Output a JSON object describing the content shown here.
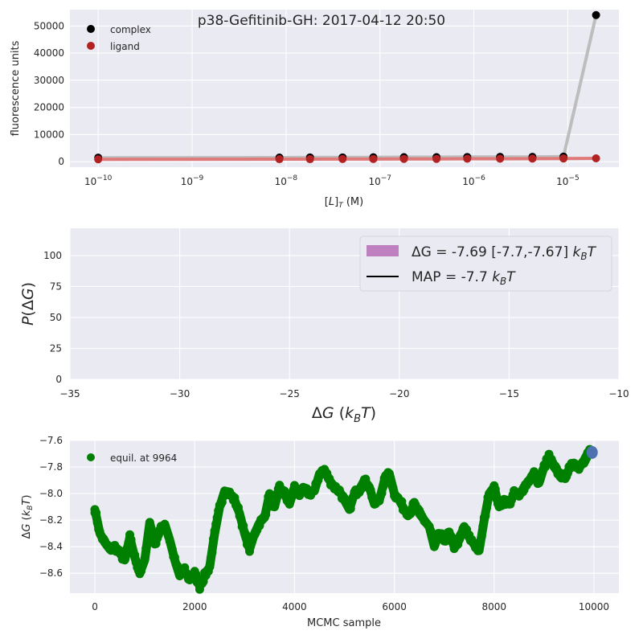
{
  "chart_data": [
    {
      "type": "scatter",
      "title": "p38-Gefitinib-GH: 2017-04-12 20:50",
      "xlabel": "[L]_T (M)",
      "ylabel": "fluorescence units",
      "xscale": "log",
      "xlim": [
        5e-11,
        3.5e-05
      ],
      "ylim": [
        -2000,
        56000
      ],
      "xticks": [
        {
          "value": 1e-10,
          "base": "10",
          "exp": "−10"
        },
        {
          "value": 1e-09,
          "base": "10",
          "exp": "−9"
        },
        {
          "value": 1e-08,
          "base": "10",
          "exp": "−8"
        },
        {
          "value": 1e-07,
          "base": "10",
          "exp": "−7"
        },
        {
          "value": 1e-06,
          "base": "10",
          "exp": "−6"
        },
        {
          "value": 1e-05,
          "base": "10",
          "exp": "−5"
        }
      ],
      "yticks": [
        0,
        10000,
        20000,
        30000,
        40000,
        50000
      ],
      "grid": true,
      "legend_position": "top-left",
      "x": [
        1e-10,
        8.5e-09,
        1.8e-08,
        4e-08,
        8.5e-08,
        1.8e-07,
        4e-07,
        8.5e-07,
        1.9e-06,
        4.2e-06,
        9e-06,
        2e-05
      ],
      "series": [
        {
          "name": "complex",
          "color": "#000000",
          "values": [
            1500,
            1550,
            1600,
            1600,
            1650,
            1700,
            1700,
            1750,
            1800,
            1800,
            1900,
            54000
          ]
        },
        {
          "name": "ligand",
          "color": "#b22222",
          "values": [
            900,
            950,
            950,
            1000,
            1000,
            1050,
            1050,
            1100,
            1100,
            1150,
            1200,
            1250
          ]
        }
      ]
    },
    {
      "type": "histogram",
      "xlabel": "ΔG (k_B T)",
      "ylabel": "P(ΔG)",
      "xlim": [
        -35,
        -10
      ],
      "ylim": [
        0,
        122
      ],
      "xticks": [
        -35,
        -30,
        -25,
        -20,
        -15,
        -10
      ],
      "yticks": [
        0,
        25,
        50,
        75,
        100
      ],
      "grid": true,
      "legend_position": "top-right",
      "legend": [
        {
          "color": "#bf80bf",
          "prefix": "ΔG = ",
          "value": " -7.69 [-7.7,-7.67] ",
          "unit": "k_B T"
        },
        {
          "color": "#000000",
          "prefix": "MAP = -7.7 ",
          "unit": "k_B T"
        }
      ]
    },
    {
      "type": "scatter",
      "xlabel": "MCMC sample",
      "ylabel": "ΔG (k_B T)",
      "xlim": [
        -500,
        10500
      ],
      "ylim": [
        -8.75,
        -7.6
      ],
      "xticks": [
        0,
        2000,
        4000,
        6000,
        8000,
        10000
      ],
      "yticks": [
        -8.6,
        -8.4,
        -8.2,
        -8.0,
        -7.8,
        -7.6
      ],
      "grid": true,
      "legend_position": "top-left",
      "series": [
        {
          "name": "equil. at 9964",
          "color": "#008000"
        }
      ],
      "trace_keypoints": [
        [
          0,
          -8.12
        ],
        [
          100,
          -8.3
        ],
        [
          200,
          -8.37
        ],
        [
          300,
          -8.42
        ],
        [
          400,
          -8.4
        ],
        [
          500,
          -8.45
        ],
        [
          600,
          -8.5
        ],
        [
          700,
          -8.33
        ],
        [
          800,
          -8.48
        ],
        [
          900,
          -8.6
        ],
        [
          1000,
          -8.5
        ],
        [
          1100,
          -8.22
        ],
        [
          1200,
          -8.38
        ],
        [
          1300,
          -8.28
        ],
        [
          1400,
          -8.23
        ],
        [
          1500,
          -8.35
        ],
        [
          1600,
          -8.5
        ],
        [
          1700,
          -8.62
        ],
        [
          1800,
          -8.58
        ],
        [
          1900,
          -8.65
        ],
        [
          2000,
          -8.6
        ],
        [
          2100,
          -8.7
        ],
        [
          2200,
          -8.62
        ],
        [
          2300,
          -8.55
        ],
        [
          2400,
          -8.3
        ],
        [
          2500,
          -8.1
        ],
        [
          2600,
          -7.98
        ],
        [
          2700,
          -8.0
        ],
        [
          2800,
          -8.05
        ],
        [
          2900,
          -8.15
        ],
        [
          3000,
          -8.3
        ],
        [
          3100,
          -8.42
        ],
        [
          3200,
          -8.3
        ],
        [
          3300,
          -8.22
        ],
        [
          3400,
          -8.18
        ],
        [
          3500,
          -8.0
        ],
        [
          3600,
          -8.1
        ],
        [
          3700,
          -7.95
        ],
        [
          3800,
          -8.0
        ],
        [
          3900,
          -8.08
        ],
        [
          4000,
          -7.95
        ],
        [
          4100,
          -8.0
        ],
        [
          4200,
          -7.97
        ],
        [
          4300,
          -8.0
        ],
        [
          4400,
          -7.98
        ],
        [
          4500,
          -7.85
        ],
        [
          4600,
          -7.82
        ],
        [
          4700,
          -7.9
        ],
        [
          4800,
          -7.95
        ],
        [
          4900,
          -7.98
        ],
        [
          5000,
          -8.05
        ],
        [
          5100,
          -8.12
        ],
        [
          5200,
          -8.0
        ],
        [
          5300,
          -7.97
        ],
        [
          5400,
          -7.9
        ],
        [
          5500,
          -7.95
        ],
        [
          5600,
          -8.08
        ],
        [
          5700,
          -8.05
        ],
        [
          5800,
          -7.9
        ],
        [
          5900,
          -7.85
        ],
        [
          6000,
          -8.0
        ],
        [
          6100,
          -8.05
        ],
        [
          6200,
          -8.12
        ],
        [
          6300,
          -8.15
        ],
        [
          6400,
          -8.08
        ],
        [
          6500,
          -8.15
        ],
        [
          6600,
          -8.2
        ],
        [
          6700,
          -8.25
        ],
        [
          6800,
          -8.4
        ],
        [
          6900,
          -8.3
        ],
        [
          7000,
          -8.35
        ],
        [
          7100,
          -8.3
        ],
        [
          7200,
          -8.4
        ],
        [
          7300,
          -8.35
        ],
        [
          7400,
          -8.25
        ],
        [
          7500,
          -8.33
        ],
        [
          7600,
          -8.38
        ],
        [
          7700,
          -8.43
        ],
        [
          7800,
          -8.2
        ],
        [
          7900,
          -8.0
        ],
        [
          8000,
          -7.95
        ],
        [
          8100,
          -8.1
        ],
        [
          8200,
          -8.05
        ],
        [
          8300,
          -8.08
        ],
        [
          8400,
          -8.0
        ],
        [
          8500,
          -8.02
        ],
        [
          8600,
          -7.95
        ],
        [
          8700,
          -7.9
        ],
        [
          8800,
          -7.85
        ],
        [
          8900,
          -7.92
        ],
        [
          9000,
          -7.8
        ],
        [
          9100,
          -7.72
        ],
        [
          9200,
          -7.8
        ],
        [
          9300,
          -7.85
        ],
        [
          9400,
          -7.88
        ],
        [
          9500,
          -7.82
        ],
        [
          9600,
          -7.77
        ],
        [
          9700,
          -7.8
        ],
        [
          9800,
          -7.75
        ],
        [
          9900,
          -7.68
        ],
        [
          9964,
          -7.69
        ]
      ],
      "equilibration_marker": {
        "x": 9964,
        "y": -7.69,
        "color": "#4c72b0"
      }
    }
  ]
}
